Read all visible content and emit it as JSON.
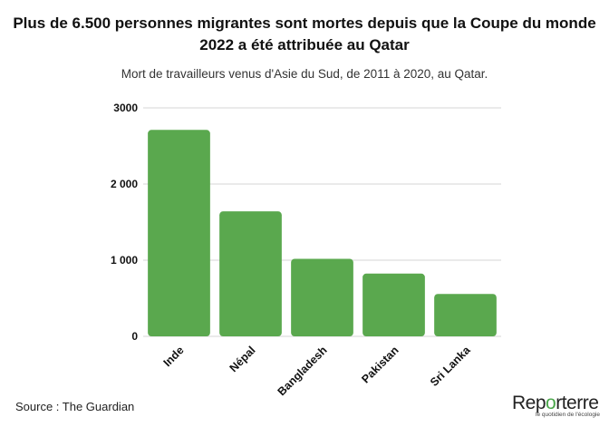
{
  "title": "Plus de 6.500 personnes migrantes sont mortes depuis que la Coupe du monde 2022 a été attribuée au Qatar",
  "subtitle": "Mort de travailleurs venus d'Asie du Sud, de 2011 à 2020, au Qatar.",
  "source": "Source : The Guardian",
  "brand": {
    "name": "Reporterre",
    "tagline": "le quotidien de l'écologie",
    "accent_color": "#4aa64a"
  },
  "chart_data": {
    "type": "bar",
    "categories": [
      "Inde",
      "Népal",
      "Bangladesh",
      "Pakistan",
      "Sri Lanka"
    ],
    "values": [
      2711,
      1641,
      1018,
      824,
      557
    ],
    "title": "Plus de 6.500 personnes migrantes sont mortes depuis que la Coupe du monde 2022 a été attribuée au Qatar",
    "subtitle": "Mort de travailleurs venus d'Asie du Sud, de 2011 à 2020, au Qatar.",
    "xlabel": "",
    "ylabel": "",
    "ylim": [
      0,
      3000
    ],
    "yticks": [
      0,
      1000,
      2000,
      3000
    ],
    "ytick_labels": [
      "0",
      "1 000",
      "2 000",
      "3000"
    ],
    "grid": true,
    "bar_color": "#5aa84e"
  }
}
